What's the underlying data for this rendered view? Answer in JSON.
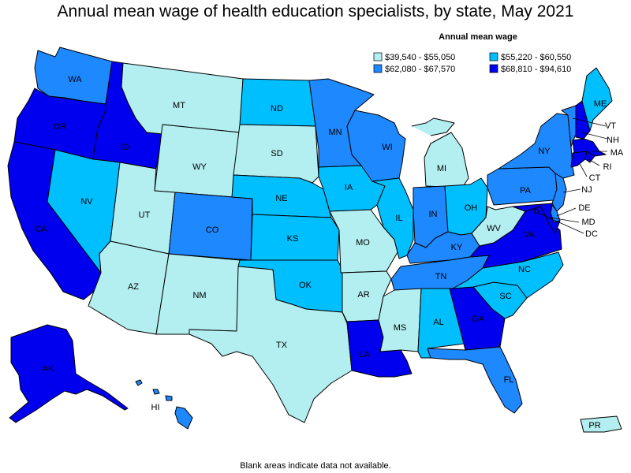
{
  "title": "Annual mean wage of health education specialists, by state, May 2021",
  "legend": {
    "title": "Annual mean wage",
    "bins": [
      {
        "label": "$39,540 - $55,050",
        "color": "#b3eef0"
      },
      {
        "label": "$55,220 - $60,550",
        "color": "#00bfff"
      },
      {
        "label": "$62,080 - $67,570",
        "color": "#1e88ff"
      },
      {
        "label": "$68,810 - $94,610",
        "color": "#0000ee"
      }
    ]
  },
  "footnote": "Blank areas indicate data not available.",
  "states": {
    "WA": {
      "label": "WA",
      "bin": 2
    },
    "OR": {
      "label": "OR",
      "bin": 3
    },
    "CA": {
      "label": "CA",
      "bin": 3
    },
    "ID": {
      "label": "ID",
      "bin": 3
    },
    "NV": {
      "label": "NV",
      "bin": 1
    },
    "MT": {
      "label": "MT",
      "bin": 0
    },
    "WY": {
      "label": "WY",
      "bin": 0
    },
    "UT": {
      "label": "UT",
      "bin": 0
    },
    "AZ": {
      "label": "AZ",
      "bin": 0
    },
    "CO": {
      "label": "CO",
      "bin": 2
    },
    "NM": {
      "label": "NM",
      "bin": 0
    },
    "ND": {
      "label": "ND",
      "bin": 1
    },
    "SD": {
      "label": "SD",
      "bin": 0
    },
    "NE": {
      "label": "NE",
      "bin": 1
    },
    "KS": {
      "label": "KS",
      "bin": 1
    },
    "OK": {
      "label": "OK",
      "bin": 1
    },
    "TX": {
      "label": "TX",
      "bin": 0
    },
    "MN": {
      "label": "MN",
      "bin": 2
    },
    "IA": {
      "label": "IA",
      "bin": 1
    },
    "MO": {
      "label": "MO",
      "bin": 0
    },
    "AR": {
      "label": "AR",
      "bin": 0
    },
    "LA": {
      "label": "LA",
      "bin": 3
    },
    "WI": {
      "label": "WI",
      "bin": 2
    },
    "IL": {
      "label": "IL",
      "bin": 1
    },
    "MI": {
      "label": "MI",
      "bin": 0
    },
    "IN": {
      "label": "IN",
      "bin": 2
    },
    "OH": {
      "label": "OH",
      "bin": 1
    },
    "KY": {
      "label": "KY",
      "bin": 2
    },
    "TN": {
      "label": "TN",
      "bin": 2
    },
    "MS": {
      "label": "MS",
      "bin": 0
    },
    "AL": {
      "label": "AL",
      "bin": 1
    },
    "GA": {
      "label": "GA",
      "bin": 3
    },
    "FL": {
      "label": "FL",
      "bin": 2
    },
    "SC": {
      "label": "SC",
      "bin": 1
    },
    "NC": {
      "label": "NC",
      "bin": 1
    },
    "VA": {
      "label": "VA",
      "bin": 3
    },
    "WV": {
      "label": "WV",
      "bin": 0
    },
    "PA": {
      "label": "PA",
      "bin": 2
    },
    "NY": {
      "label": "NY",
      "bin": 2
    },
    "VT": {
      "label": "VT",
      "bin": 2
    },
    "NH": {
      "label": "NH",
      "bin": 3
    },
    "ME": {
      "label": "ME",
      "bin": 1
    },
    "MA": {
      "label": "MA",
      "bin": 3
    },
    "RI": {
      "label": "RI",
      "bin": 3
    },
    "CT": {
      "label": "CT",
      "bin": 3
    },
    "NJ": {
      "label": "NJ",
      "bin": 2
    },
    "DE": {
      "label": "DE",
      "bin": 2
    },
    "MD": {
      "label": "MD",
      "bin": 3
    },
    "DC": {
      "label": "DC",
      "bin": 3
    },
    "AK": {
      "label": "AK",
      "bin": 3
    },
    "HI": {
      "label": "HI",
      "bin": 2
    },
    "PR": {
      "label": "PR",
      "bin": 0
    }
  }
}
